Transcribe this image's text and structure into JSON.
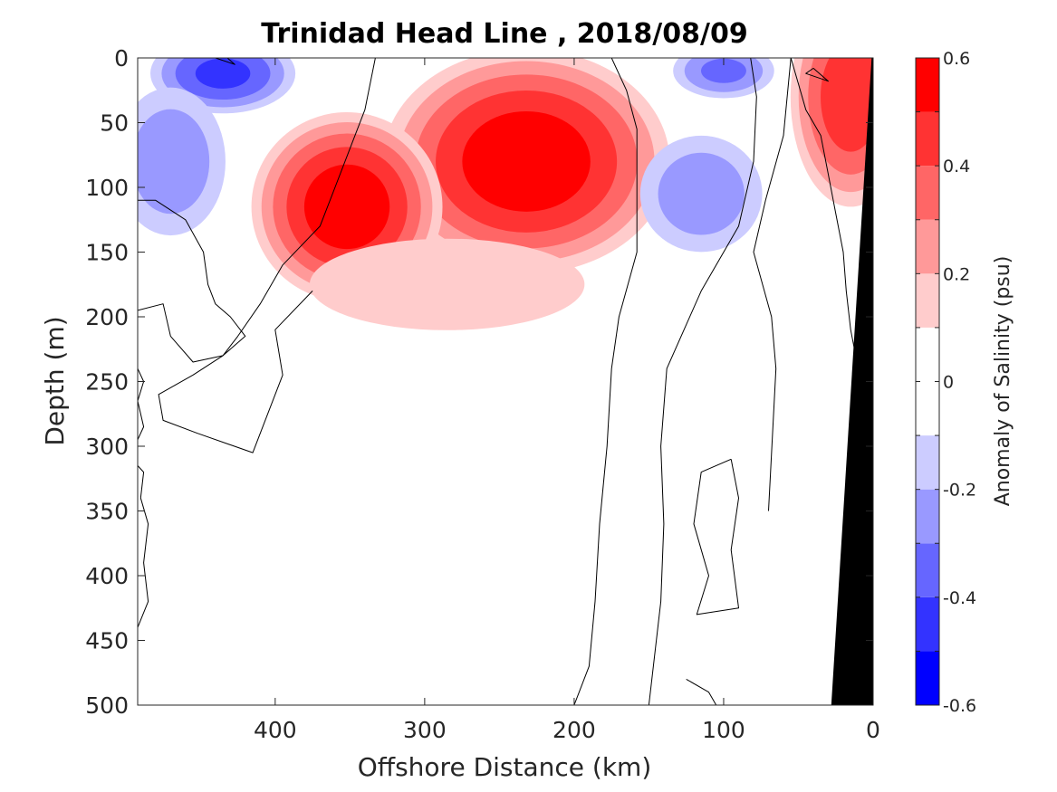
{
  "chart_data": {
    "type": "heatmap",
    "title": "Trinidad Head Line , 2018/08/09",
    "xlabel": "Offshore Distance (km)",
    "ylabel": "Depth (m)",
    "xlim": [
      492,
      0
    ],
    "ylim": [
      0,
      500
    ],
    "x_ticks": [
      "400",
      "300",
      "200",
      "100",
      "0"
    ],
    "y_ticks": [
      "0",
      "50",
      "100",
      "150",
      "200",
      "250",
      "300",
      "350",
      "400",
      "450",
      "500"
    ],
    "colorbar": {
      "label": "Anomaly of Salinity (psu)",
      "range": [
        -0.6,
        0.6
      ],
      "ticks": [
        "0.6",
        "0.4",
        "0.2",
        "0",
        "-0.2",
        "-0.4",
        "-0.6"
      ],
      "levels": [
        -0.6,
        -0.5,
        -0.4,
        -0.3,
        -0.2,
        -0.1,
        0.1,
        0.2,
        0.3,
        0.4,
        0.5,
        0.6
      ],
      "colors": [
        "#0000ff",
        "#3333ff",
        "#6666ff",
        "#9999ff",
        "#ccccff",
        "#ffffff",
        "#ffffff",
        "#ffcccc",
        "#ff9999",
        "#ff6666",
        "#ff3333",
        "#ff0000"
      ]
    },
    "features": [
      {
        "sign": "positive",
        "peak": 0.6,
        "center_km": 232,
        "center_depth_m": 80,
        "radius_km": 105,
        "radius_depth_m": 95
      },
      {
        "sign": "positive",
        "peak": 0.6,
        "center_km": 352,
        "center_depth_m": 115,
        "radius_km": 70,
        "radius_depth_m": 80
      },
      {
        "sign": "positive",
        "peak": 0.5,
        "center_km": 15,
        "center_depth_m": 30,
        "radius_km": 45,
        "radius_depth_m": 95
      },
      {
        "sign": "positive",
        "peak": 0.2,
        "center_km": 285,
        "center_depth_m": 175,
        "radius_km": 130,
        "radius_depth_m": 50
      },
      {
        "sign": "negative",
        "peak": -0.45,
        "center_km": 435,
        "center_depth_m": 12,
        "radius_km": 55,
        "radius_depth_m": 35
      },
      {
        "sign": "negative",
        "peak": -0.3,
        "center_km": 470,
        "center_depth_m": 80,
        "radius_km": 45,
        "radius_depth_m": 70
      },
      {
        "sign": "negative",
        "peak": -0.3,
        "center_km": 115,
        "center_depth_m": 105,
        "radius_km": 50,
        "radius_depth_m": 55
      },
      {
        "sign": "negative",
        "peak": -0.35,
        "center_km": 100,
        "center_depth_m": 10,
        "radius_km": 40,
        "radius_depth_m": 25
      }
    ],
    "zero_contours": [
      {
        "points": [
          [
            432,
            0
          ],
          [
            427,
            5
          ],
          [
            440,
            0
          ]
        ]
      },
      {
        "points": [
          [
            333,
            0
          ],
          [
            340,
            40
          ],
          [
            350,
            70
          ],
          [
            360,
            100
          ],
          [
            370,
            130
          ],
          [
            395,
            160
          ],
          [
            410,
            190
          ],
          [
            425,
            215
          ],
          [
            435,
            230
          ],
          [
            455,
            245
          ],
          [
            478,
            260
          ],
          [
            475,
            280
          ],
          [
            452,
            290
          ],
          [
            415,
            305
          ],
          [
            395,
            245
          ],
          [
            400,
            210
          ],
          [
            375,
            180
          ]
        ]
      },
      {
        "points": [
          [
            175,
            0
          ],
          [
            165,
            25
          ],
          [
            158,
            55
          ],
          [
            158,
            150
          ],
          [
            170,
            200
          ],
          [
            175,
            240
          ],
          [
            178,
            300
          ],
          [
            183,
            360
          ],
          [
            186,
            420
          ],
          [
            190,
            470
          ],
          [
            200,
            500
          ]
        ]
      },
      {
        "points": [
          [
            82,
            0
          ],
          [
            78,
            30
          ],
          [
            80,
            80
          ],
          [
            90,
            130
          ],
          [
            115,
            180
          ],
          [
            138,
            240
          ],
          [
            142,
            300
          ],
          [
            140,
            360
          ],
          [
            142,
            420
          ],
          [
            150,
            500
          ]
        ]
      },
      {
        "points": [
          [
            55,
            0
          ],
          [
            50,
            20
          ],
          [
            45,
            40
          ],
          [
            35,
            60
          ],
          [
            30,
            90
          ],
          [
            25,
            120
          ],
          [
            20,
            150
          ],
          [
            18,
            180
          ],
          [
            15,
            210
          ],
          [
            10,
            240
          ],
          [
            5,
            300
          ],
          [
            3,
            400
          ],
          [
            2,
            500
          ]
        ]
      },
      {
        "points": [
          [
            40,
            8
          ],
          [
            45,
            12
          ],
          [
            30,
            18
          ],
          [
            40,
            8
          ]
        ]
      },
      {
        "points": [
          [
            492,
            195
          ],
          [
            475,
            190
          ],
          [
            470,
            215
          ],
          [
            455,
            235
          ],
          [
            435,
            230
          ],
          [
            420,
            215
          ],
          [
            430,
            200
          ],
          [
            440,
            190
          ],
          [
            445,
            175
          ],
          [
            448,
            150
          ],
          [
            460,
            125
          ],
          [
            480,
            110
          ],
          [
            492,
            110
          ]
        ]
      },
      {
        "points": [
          [
            492,
            240
          ],
          [
            488,
            250
          ],
          [
            492,
            265
          ],
          [
            488,
            285
          ],
          [
            492,
            295
          ]
        ]
      },
      {
        "points": [
          [
            492,
            315
          ],
          [
            488,
            320
          ],
          [
            490,
            340
          ],
          [
            485,
            360
          ],
          [
            488,
            390
          ],
          [
            485,
            420
          ],
          [
            492,
            440
          ]
        ]
      },
      {
        "points": [
          [
            95,
            310
          ],
          [
            115,
            320
          ],
          [
            120,
            360
          ],
          [
            110,
            400
          ],
          [
            118,
            430
          ],
          [
            90,
            425
          ],
          [
            95,
            380
          ],
          [
            90,
            340
          ],
          [
            95,
            310
          ]
        ]
      },
      {
        "points": [
          [
            125,
            480
          ],
          [
            110,
            490
          ],
          [
            105,
            500
          ]
        ]
      },
      {
        "points": [
          [
            70,
            350
          ],
          [
            65,
            240
          ],
          [
            68,
            200
          ],
          [
            80,
            150
          ],
          [
            72,
            110
          ],
          [
            60,
            60
          ],
          [
            55,
            0
          ]
        ]
      }
    ],
    "land_mask": {
      "points": [
        [
          0,
          0
        ],
        [
          0,
          500
        ],
        [
          28,
          500
        ],
        [
          1,
          0
        ]
      ]
    }
  }
}
